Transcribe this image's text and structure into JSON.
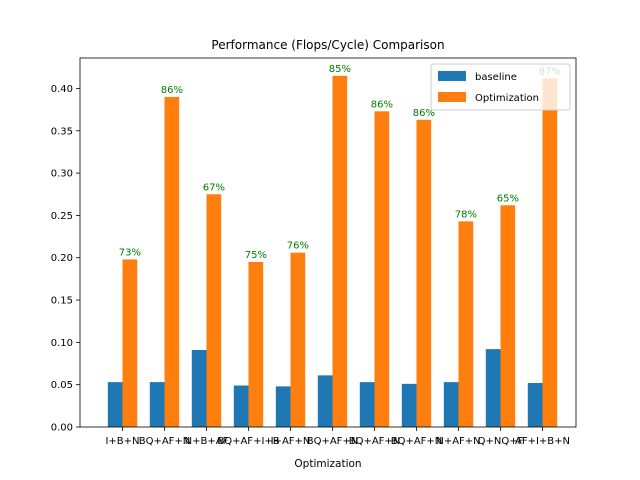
{
  "chart_data": {
    "type": "bar",
    "title": "Performance (Flops/Cycle) Comparison",
    "xlabel": "Optimization",
    "ylabel": "",
    "ylim": [
      0,
      0.436
    ],
    "yticks": [
      0.0,
      0.05,
      0.1,
      0.15,
      0.2,
      0.25,
      0.3,
      0.35,
      0.4
    ],
    "categories": [
      "I+B+N",
      "BQ+AF+N",
      "N+B+AF",
      "BQ+AF+I+B",
      "I+AF+N",
      "BQ+AF+N",
      "BQ+AF+N",
      "BQ+AF+N",
      "N+AF+N",
      "Q+NQ+F",
      "AF+I+B+N"
    ],
    "series": [
      {
        "name": "baseline",
        "color": "#1f77b4",
        "values": [
          0.053,
          0.053,
          0.091,
          0.049,
          0.048,
          0.061,
          0.053,
          0.051,
          0.053,
          0.092,
          0.052
        ]
      },
      {
        "name": "Optimization",
        "color": "#ff7f0e",
        "values": [
          0.198,
          0.39,
          0.275,
          0.195,
          0.206,
          0.415,
          0.373,
          0.363,
          0.243,
          0.262,
          0.412
        ]
      }
    ],
    "annotations": [
      "73%",
      "86%",
      "67%",
      "75%",
      "76%",
      "85%",
      "86%",
      "86%",
      "78%",
      "65%",
      "87%"
    ],
    "annotation_color": "#008000",
    "legend_position": "top-right",
    "grid": false
  }
}
